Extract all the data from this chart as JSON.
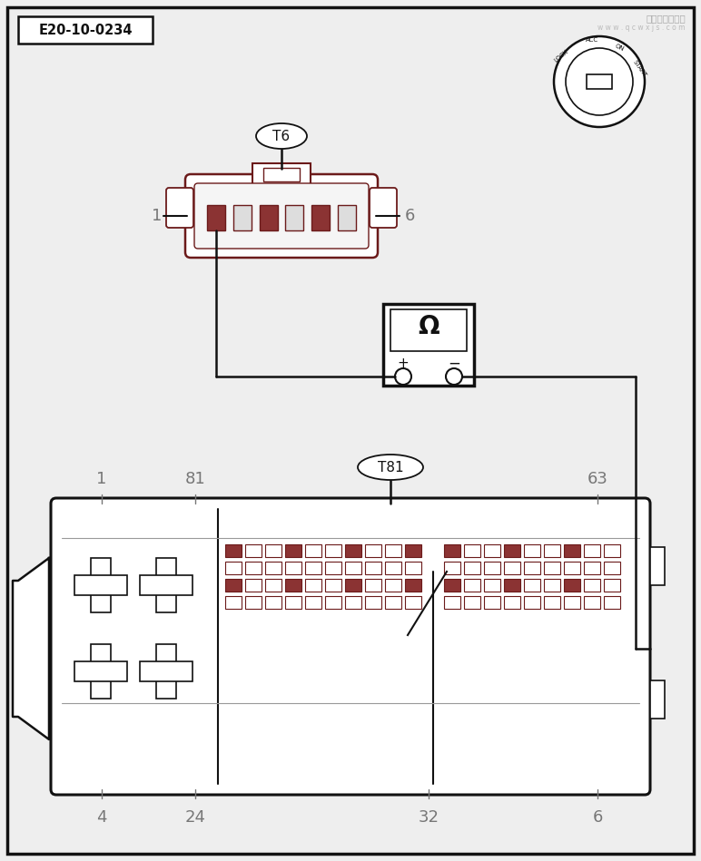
{
  "bg_color": "#eeeeee",
  "border_color": "#111111",
  "dark_red": "#6b1a1a",
  "pin_red": "#8B3333",
  "gray": "#777777",
  "label_e20": "E20-10-0234",
  "t6_label": "T6",
  "t81_label": "T81"
}
